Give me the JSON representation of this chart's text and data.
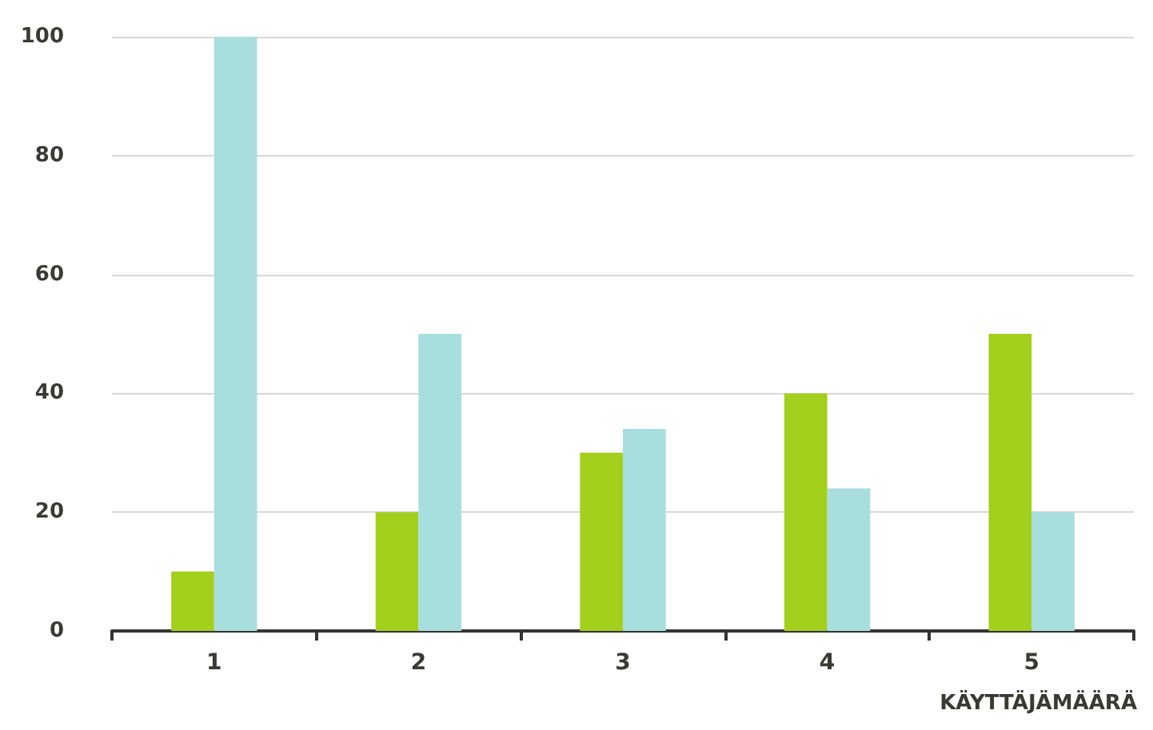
{
  "chart_data": {
    "type": "bar",
    "xlabel": "KÄYTTÄJÄMÄÄRÄ",
    "categories": [
      "1",
      "2",
      "3",
      "4",
      "5"
    ],
    "series": [
      {
        "color": "#a3cf1d",
        "values": [
          10,
          20,
          30,
          40,
          50
        ]
      },
      {
        "color": "#a8dedd",
        "values": [
          100,
          50,
          34,
          24,
          20
        ]
      }
    ],
    "ylim": [
      0,
      100
    ],
    "yticks": [
      0,
      20,
      40,
      60,
      80,
      100
    ],
    "grid": "y"
  }
}
